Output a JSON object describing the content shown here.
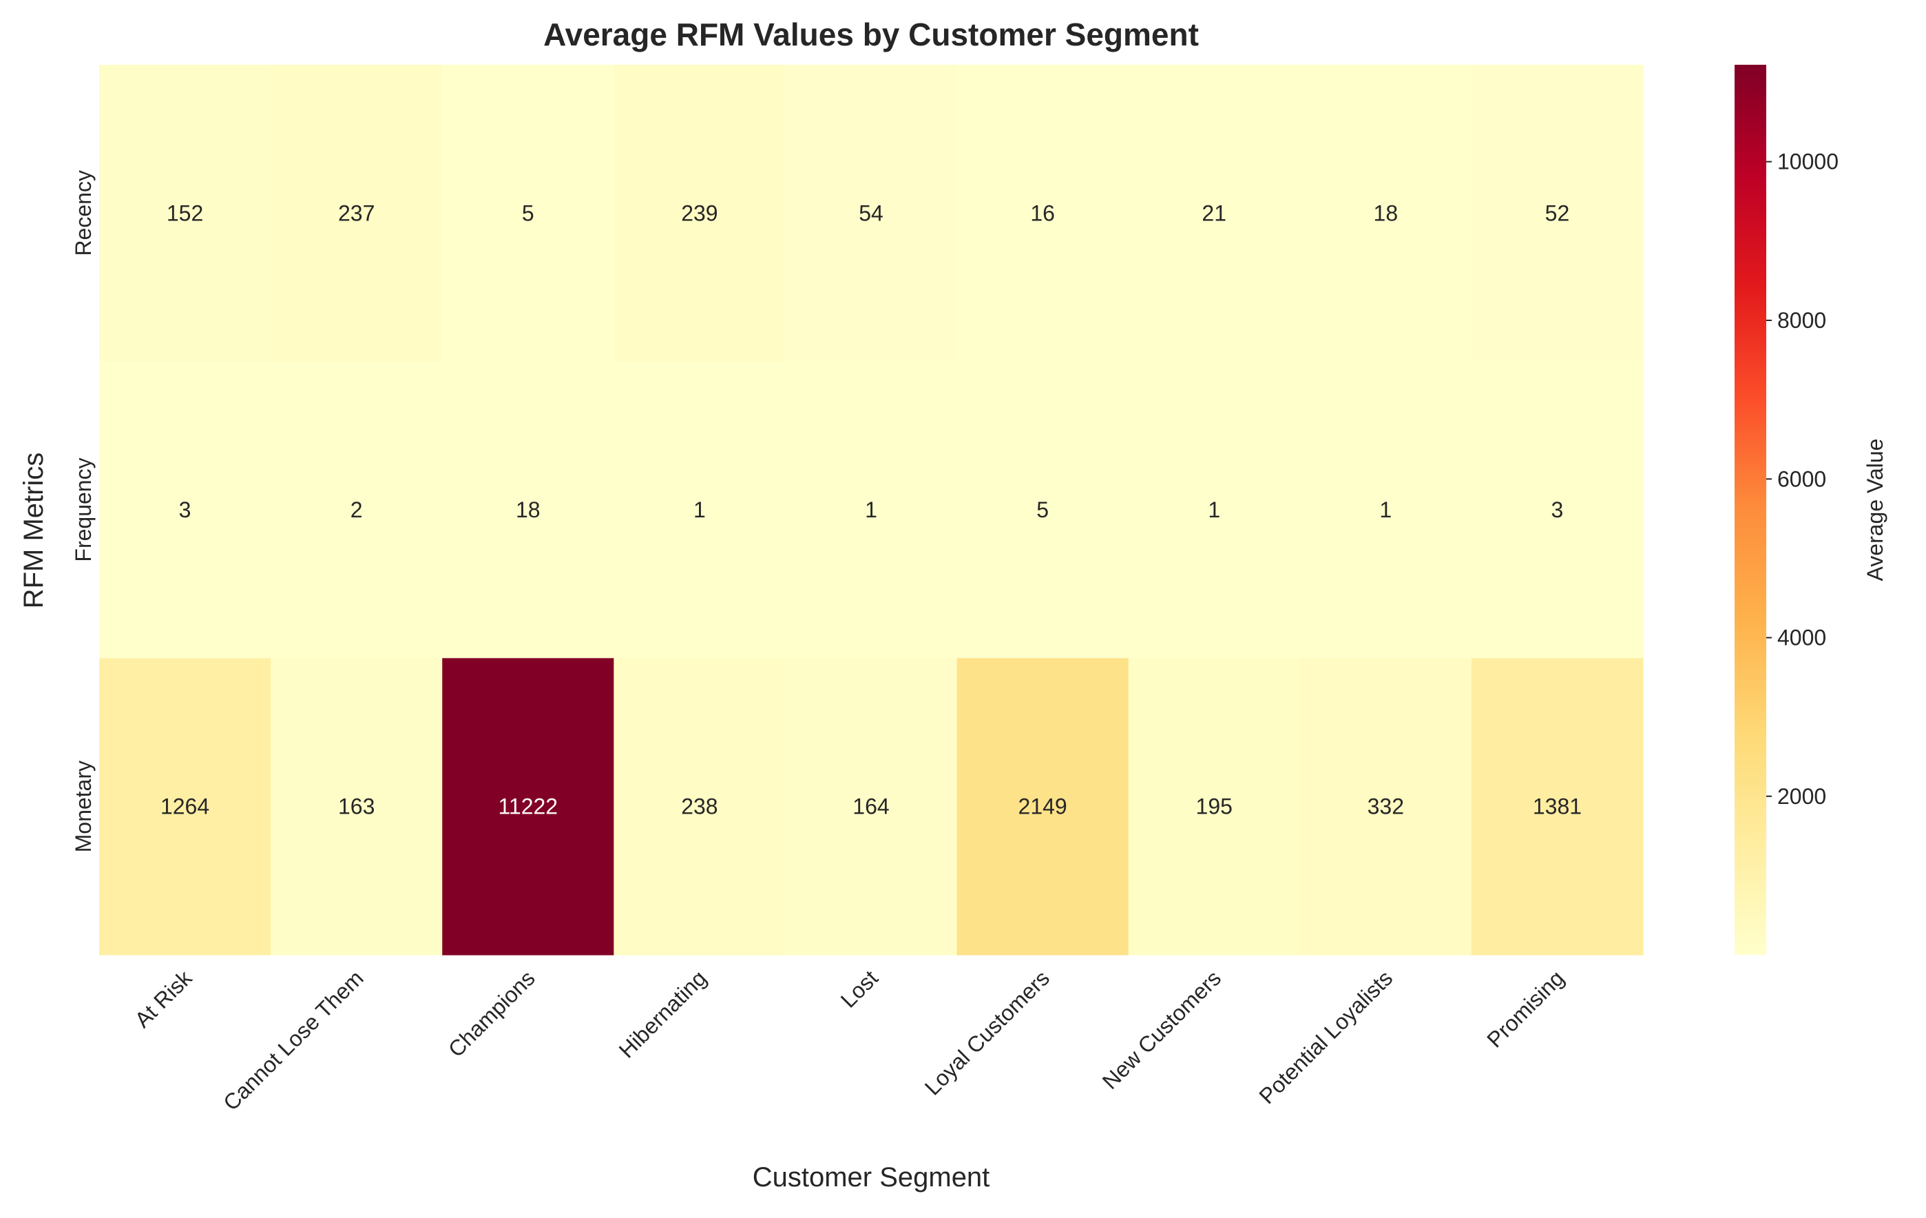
{
  "chart_data": {
    "type": "heatmap",
    "title": "Average RFM Values by Customer Segment",
    "xlabel": "Customer Segment",
    "ylabel": "RFM Metrics",
    "columns": [
      "At Risk",
      "Cannot Lose Them",
      "Champions",
      "Hibernating",
      "Lost",
      "Loyal Customers",
      "New Customers",
      "Potential Loyalists",
      "Promising"
    ],
    "rows": [
      "Recency",
      "Frequency",
      "Monetary"
    ],
    "values": [
      [
        152,
        237,
        5,
        239,
        54,
        16,
        21,
        18,
        52
      ],
      [
        3,
        2,
        18,
        1,
        1,
        5,
        1,
        1,
        3
      ],
      [
        1264,
        163,
        11222,
        238,
        164,
        2149,
        195,
        332,
        1381
      ]
    ],
    "colormap": "YlOrRd",
    "color_stops": [
      "#ffffcc",
      "#ffeda0",
      "#fed976",
      "#feb24c",
      "#fd8d3c",
      "#fc4e2a",
      "#e31a1c",
      "#bd0026",
      "#800026"
    ],
    "vmin": 1,
    "vmax": 11222,
    "colorbar": {
      "label": "Average Value",
      "ticks": [
        2000,
        4000,
        6000,
        8000,
        10000
      ]
    }
  }
}
